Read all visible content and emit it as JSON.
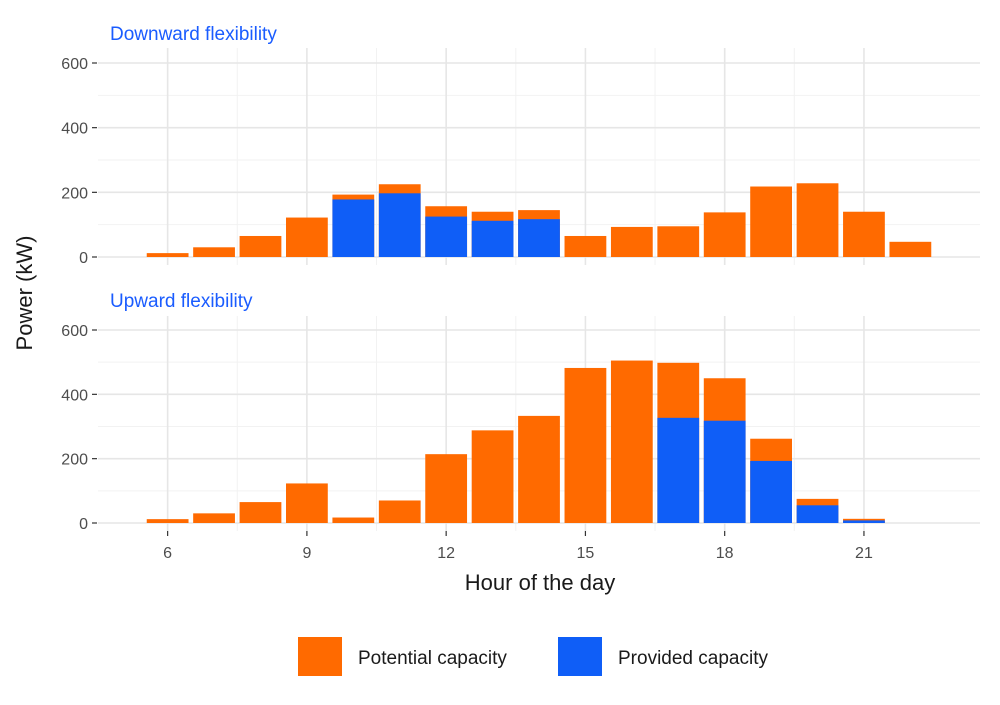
{
  "colors": {
    "potential": "#ff6a00",
    "provided": "#0f5ef7",
    "panel_title": "#1a5cff",
    "grid_major": "#e6e6e6",
    "grid_minor": "#f2f2f2"
  },
  "chart_data": {
    "type": "bar",
    "stacked": true,
    "xlabel": "Hour of the day",
    "ylabel": "Power (kW)",
    "xlim": [
      4.5,
      23.5
    ],
    "xticks": [
      6,
      9,
      12,
      15,
      18,
      21
    ],
    "ylim": [
      0,
      600
    ],
    "yticks": [
      0,
      200,
      400,
      600
    ],
    "legend": {
      "position": "bottom",
      "entries": [
        {
          "label": "Potential capacity",
          "color_key": "potential"
        },
        {
          "label": "Provided capacity",
          "color_key": "provided"
        }
      ]
    },
    "panels": [
      {
        "title": "Downward flexibility",
        "hours": [
          6,
          7,
          8,
          9,
          10,
          11,
          12,
          13,
          14,
          15,
          16,
          17,
          18,
          19,
          20,
          21,
          22
        ],
        "potential": [
          12,
          30,
          65,
          122,
          193,
          225,
          157,
          140,
          145,
          65,
          93,
          95,
          138,
          218,
          228,
          140,
          47
        ],
        "provided": [
          0,
          0,
          0,
          0,
          178,
          197,
          125,
          112,
          117,
          0,
          0,
          0,
          0,
          0,
          0,
          0,
          0
        ]
      },
      {
        "title": "Upward flexibility",
        "hours": [
          6,
          7,
          8,
          9,
          10,
          11,
          12,
          13,
          14,
          15,
          16,
          17,
          18,
          19,
          20,
          21
        ],
        "potential": [
          12,
          30,
          65,
          123,
          17,
          70,
          214,
          288,
          333,
          482,
          505,
          498,
          450,
          262,
          75,
          13
        ],
        "provided": [
          0,
          0,
          0,
          0,
          0,
          0,
          0,
          0,
          0,
          0,
          0,
          327,
          318,
          193,
          55,
          8
        ]
      }
    ]
  }
}
